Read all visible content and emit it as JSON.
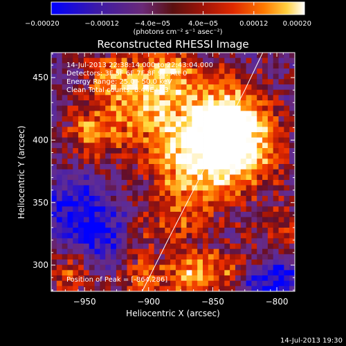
{
  "chart_data": {
    "type": "heatmap",
    "title": "Reconstructed RHESSI Image",
    "xlabel": "Heliocentric X (arcsec)",
    "ylabel": "Heliocentric Y (arcsec)",
    "xlim": [
      -976,
      -786
    ],
    "ylim": [
      279,
      470
    ],
    "xticks": [
      -950,
      -900,
      -850,
      -800
    ],
    "xtick_labels": [
      "−950",
      "−900",
      "−850",
      "−800"
    ],
    "yticks": [
      300,
      350,
      400,
      450
    ],
    "ytick_labels": [
      "300",
      "350",
      "400",
      "450"
    ],
    "colorbar": {
      "range": [
        -0.0002,
        0.0002
      ],
      "ticks": [
        -0.0002,
        -0.00012,
        -4e-05,
        4e-05,
        0.00012,
        0.0002
      ],
      "tick_labels": [
        "−0.00020",
        "−0.00012",
        "−4.0e−05",
        "4.0e−05",
        "0.00012",
        "0.00020"
      ],
      "units": "(photons cm⁻² s⁻¹ asec⁻²)",
      "colormap": "red-temperature"
    },
    "info_lines": [
      "14-Jul-2013 22:38:14.000 to 22:43:04.000",
      "Detectors: 3F 5F 6F 7F 8F 9F, Att 0",
      "Energy Range: 25.0 - 50.0 keV",
      "Clean     Total counts: 8.44E+03"
    ],
    "peak_label": "Position of Peak = [-864,286]",
    "peak": [
      -864,
      286
    ],
    "limb": [
      [
        -905,
        279
      ],
      [
        -885,
        320
      ],
      [
        -865,
        360
      ],
      [
        -845,
        400
      ],
      [
        -825,
        440
      ],
      [
        -811,
        470
      ]
    ],
    "hotspots": [
      {
        "x": -860,
        "y": 385,
        "amp": 1.0,
        "w": 28
      },
      {
        "x": -840,
        "y": 420,
        "amp": 0.8,
        "w": 22
      },
      {
        "x": -825,
        "y": 395,
        "amp": 0.7,
        "w": 20
      },
      {
        "x": -905,
        "y": 430,
        "amp": 0.7,
        "w": 25
      },
      {
        "x": -945,
        "y": 405,
        "amp": 0.6,
        "w": 15
      },
      {
        "x": -885,
        "y": 455,
        "amp": 0.55,
        "w": 15
      },
      {
        "x": -930,
        "y": 452,
        "amp": 0.5,
        "w": 12
      },
      {
        "x": -865,
        "y": 292,
        "amp": 0.85,
        "w": 14
      },
      {
        "x": -905,
        "y": 288,
        "amp": 0.6,
        "w": 12
      },
      {
        "x": -960,
        "y": 290,
        "amp": 0.55,
        "w": 12
      },
      {
        "x": -880,
        "y": 335,
        "amp": 0.4,
        "w": 15
      },
      {
        "x": -790,
        "y": 330,
        "amp": 0.45,
        "w": 14
      },
      {
        "x": -835,
        "y": 300,
        "amp": 0.4,
        "w": 12
      },
      {
        "x": -912,
        "y": 318,
        "amp": 0.4,
        "w": 12
      }
    ],
    "coldspots": [
      {
        "x": -955,
        "y": 345,
        "amp": 0.6,
        "w": 18
      },
      {
        "x": -930,
        "y": 320,
        "amp": 0.5,
        "w": 14
      },
      {
        "x": -795,
        "y": 290,
        "amp": 0.7,
        "w": 10
      },
      {
        "x": -815,
        "y": 285,
        "amp": 0.5,
        "w": 8
      }
    ]
  },
  "footer": {
    "timestamp": "14-Jul-2013 19:30"
  }
}
